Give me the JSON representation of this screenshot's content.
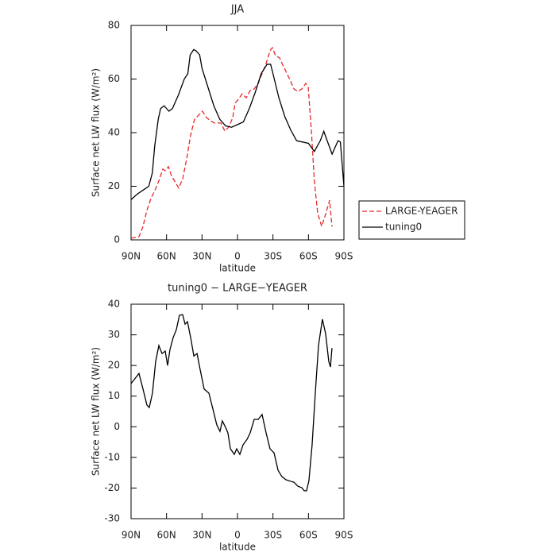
{
  "chart_data": [
    {
      "type": "line",
      "title": "JJA",
      "xlabel": "latitude",
      "ylabel": "Surface net LW flux (W/m²)",
      "xlim": [
        90,
        -90
      ],
      "xticks": [
        {
          "value": 90,
          "label": "90N"
        },
        {
          "value": 60,
          "label": "60N"
        },
        {
          "value": 30,
          "label": "30N"
        },
        0,
        {
          "value": -30,
          "label": "30S"
        },
        {
          "value": -60,
          "label": "60S"
        },
        {
          "value": -90,
          "label": "90S"
        }
      ],
      "ylim": [
        0,
        80
      ],
      "yticks": [
        0,
        20,
        40,
        60,
        80
      ],
      "legend": "right",
      "series": [
        {
          "name": "LARGE-YEAGER",
          "color": "#e8292c",
          "linestyle": "dashed",
          "x": [
            90,
            83.3,
            79.9,
            76.6,
            73.2,
            69.9,
            66.5,
            63.1,
            61.1,
            58.4,
            55.7,
            53.1,
            49.7,
            46.3,
            43,
            39.6,
            36.3,
            32.9,
            29.6,
            26.2,
            22.8,
            19.5,
            14.1,
            10.7,
            7.4,
            4,
            2,
            -0.7,
            -4,
            -7.4,
            -10.7,
            -14.1,
            -17.5,
            -20.8,
            -24.2,
            -26.2,
            -28.2,
            -29.6,
            -32.2,
            -35.6,
            -38.3,
            -41,
            -44.3,
            -47.7,
            -51,
            -54.4,
            -57.8,
            -59.8,
            -62.5,
            -65.1,
            -67.8,
            -71.2,
            -74.5,
            -77.9,
            -79.9
          ],
          "values": [
            0.6,
            1.2,
            5,
            11,
            15.4,
            18.4,
            22,
            26.4,
            25.8,
            27.3,
            23.7,
            21.9,
            19.3,
            22.8,
            30.2,
            39.1,
            45,
            46.5,
            48,
            45.6,
            44.4,
            43.6,
            43.6,
            40.6,
            42.1,
            45.6,
            51,
            52.4,
            54.5,
            53,
            55.7,
            56.3,
            58.4,
            62,
            65.8,
            68.7,
            71.1,
            71.7,
            68.7,
            67.9,
            65.2,
            62.8,
            59.8,
            56.3,
            55.4,
            56.3,
            58.4,
            56.9,
            40.6,
            21.3,
            10,
            5,
            9.5,
            14.8,
            5
          ]
        },
        {
          "name": "tuning0",
          "color": "#000000",
          "linestyle": "solid",
          "x": [
            90,
            85,
            80,
            75,
            72,
            70,
            67,
            65,
            62,
            60,
            58,
            55,
            50,
            45,
            42,
            40,
            37,
            35,
            32,
            30,
            25,
            20,
            15,
            10,
            5,
            0,
            -5,
            -10,
            -15,
            -20,
            -25,
            -28,
            -30,
            -35,
            -40,
            -45,
            -50,
            -55,
            -60,
            -65,
            -70,
            -73,
            -75,
            -80,
            -85,
            -87,
            -90
          ],
          "values": [
            15,
            17,
            18.5,
            20,
            25,
            35,
            45,
            49,
            50,
            49,
            48,
            49,
            54,
            60,
            62,
            69,
            71,
            70.5,
            69,
            64,
            57,
            50,
            45,
            42.5,
            42,
            43,
            44,
            49,
            55,
            62,
            65.5,
            65.5,
            62,
            53,
            46,
            41,
            37,
            36.5,
            36,
            33,
            37,
            40.5,
            38,
            32,
            37,
            36.5,
            20
          ]
        }
      ]
    },
    {
      "type": "line",
      "title": "tuning0 − LARGE−YEAGER",
      "xlabel": "latitude",
      "ylabel": "Surface net LW flux (W/m²)",
      "xlim": [
        90,
        -90
      ],
      "xticks": [
        {
          "value": 90,
          "label": "90N"
        },
        {
          "value": 60,
          "label": "60N"
        },
        {
          "value": 30,
          "label": "30N"
        },
        0,
        {
          "value": -30,
          "label": "30S"
        },
        {
          "value": -60,
          "label": "60S"
        },
        {
          "value": -90,
          "label": "90S"
        }
      ],
      "ylim": [
        -30,
        40
      ],
      "yticks": [
        -30,
        -20,
        -10,
        0,
        10,
        20,
        30,
        40
      ],
      "series": [
        {
          "color": "#000000",
          "linestyle": "solid",
          "x": [
            90,
            83.3,
            79.9,
            76.6,
            74.6,
            71.9,
            69.2,
            66.5,
            63.8,
            61.1,
            59.1,
            57.1,
            54.4,
            51.7,
            49.1,
            46.4,
            44.3,
            42.3,
            39.6,
            36.9,
            34.2,
            31.6,
            28.2,
            24.2,
            20.8,
            17.5,
            14.8,
            12.8,
            10.1,
            8.1,
            6,
            2.7,
            0.7,
            -2,
            -4.7,
            -8.1,
            -10.7,
            -14.1,
            -17.5,
            -20.8,
            -24.2,
            -27.5,
            -30.9,
            -34.3,
            -37.6,
            -41,
            -45,
            -47.7,
            -51,
            -54.4,
            -56.4,
            -58.4,
            -60.4,
            -63.1,
            -65.8,
            -68.5,
            -71.8,
            -74.5,
            -77.2,
            -78.6,
            -79.9
          ],
          "values": [
            14.1,
            17.4,
            12.3,
            7.1,
            6.3,
            11,
            21.3,
            26.5,
            23.9,
            24.7,
            20,
            25.2,
            29.1,
            31.7,
            36.4,
            36.6,
            33.5,
            34.3,
            29.1,
            23.1,
            23.9,
            18.7,
            12.3,
            11,
            5.8,
            0.6,
            -1.5,
            1.9,
            -0.2,
            -2,
            -7.2,
            -9,
            -7.2,
            -9,
            -5.9,
            -4.1,
            -2,
            2.4,
            2.4,
            4,
            -2,
            -7.2,
            -8.5,
            -14.2,
            -16.3,
            -17.3,
            -17.8,
            -18.1,
            -19.4,
            -19.9,
            -20.9,
            -20.9,
            -17.6,
            -5.9,
            11,
            26.5,
            35.1,
            30.4,
            21.3,
            19.5,
            25.7
          ]
        }
      ]
    }
  ]
}
